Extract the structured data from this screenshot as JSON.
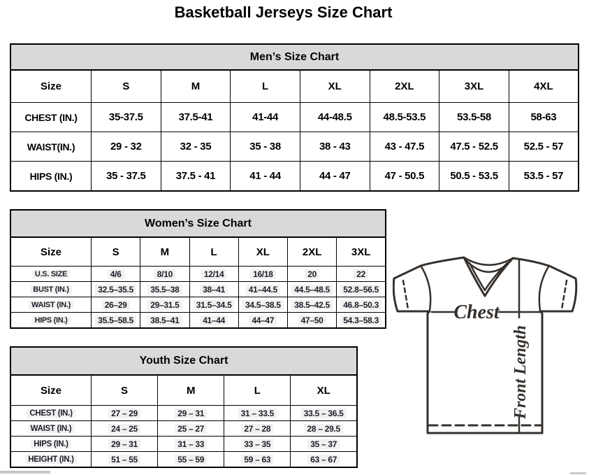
{
  "page_title": "Basketball Jerseys Size Chart",
  "tables": {
    "men": {
      "title": "Men’s Size Chart",
      "columns": [
        "Size",
        "S",
        "M",
        "L",
        "XL",
        "2XL",
        "3XL",
        "4XL"
      ],
      "rows": [
        [
          "CHEST (IN.)",
          "35-37.5",
          "37.5-41",
          "41-44",
          "44-48.5",
          "48.5-53.5",
          "53.5-58",
          "58-63"
        ],
        [
          "WAIST(IN.)",
          "29 - 32",
          "32 - 35",
          "35 - 38",
          "38 - 43",
          "43 - 47.5",
          "47.5 - 52.5",
          "52.5 - 57"
        ],
        [
          "HIPS (IN.)",
          "35 - 37.5",
          "37.5 - 41",
          "41 - 44",
          "44 - 47",
          "47 - 50.5",
          "50.5 - 53.5",
          "53.5 - 57"
        ]
      ]
    },
    "women": {
      "title": "Women’s Size Chart",
      "columns": [
        "Size",
        "S",
        "M",
        "L",
        "XL",
        "2XL",
        "3XL"
      ],
      "rows": [
        [
          "U.S. SIZE",
          "4/6",
          "8/10",
          "12/14",
          "16/18",
          "20",
          "22"
        ],
        [
          "BUST (IN.)",
          "32.5–35.5",
          "35.5–38",
          "38–41",
          "41–44.5",
          "44.5–48.5",
          "52.8–56.5"
        ],
        [
          "WAIST (IN.)",
          "26–29",
          "29–31.5",
          "31.5–34.5",
          "34.5–38.5",
          "38.5–42.5",
          "46.8–50.3"
        ],
        [
          "HIPS (IN.)",
          "35.5–58.5",
          "38.5–41",
          "41–44",
          "44–47",
          "47–50",
          "54.3–58.3"
        ]
      ]
    },
    "youth": {
      "title": "Youth Size Chart",
      "columns": [
        "Size",
        "S",
        "M",
        "L",
        "XL"
      ],
      "rows": [
        [
          "CHEST (IN.)",
          "27 – 29",
          "29 – 31",
          "31 – 33.5",
          "33.5 – 36.5"
        ],
        [
          "WAIST (IN.)",
          "24 – 25",
          "25 – 27",
          "27 – 28",
          "28 – 29.5"
        ],
        [
          "HIPS (IN.)",
          "29 – 31",
          "31 – 33",
          "33 – 35",
          "35 – 37"
        ],
        [
          "HEIGHT (IN.)",
          "51 – 55",
          "55 – 59",
          "59 – 63",
          "63 – 67"
        ]
      ]
    }
  },
  "diagram": {
    "chest_label": "Chest",
    "front_length_label": "Front Length"
  },
  "colors": {
    "table_header_bg": "#d9d9d9",
    "table_border": "#000000",
    "secondary_text": "#1d1d28",
    "jersey_line": "#35302c",
    "scrollbar": "#c9c9c9"
  }
}
